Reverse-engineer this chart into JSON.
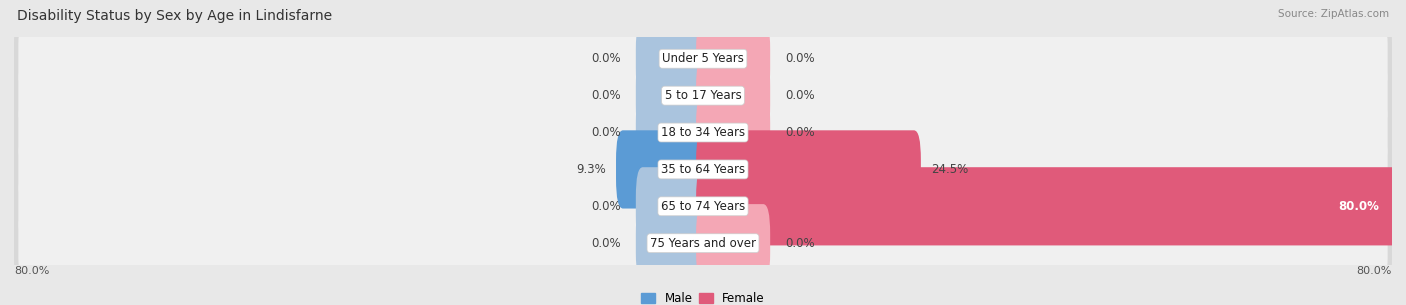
{
  "title": "Disability Status by Sex by Age in Lindisfarne",
  "source": "Source: ZipAtlas.com",
  "categories": [
    "Under 5 Years",
    "5 to 17 Years",
    "18 to 34 Years",
    "35 to 64 Years",
    "65 to 74 Years",
    "75 Years and over"
  ],
  "male_values": [
    0.0,
    0.0,
    0.0,
    9.3,
    0.0,
    0.0
  ],
  "female_values": [
    0.0,
    0.0,
    0.0,
    24.5,
    80.0,
    0.0
  ],
  "male_color_light": "#aac4de",
  "male_color_dark": "#5b9bd5",
  "female_color_light": "#f4a7b5",
  "female_color_dark": "#e05a7a",
  "xlim_left": -80,
  "xlim_right": 80,
  "bar_height": 0.52,
  "stub_size": 7.0,
  "row_outer_color": "#d8d8d8",
  "row_inner_color": "#f0f0f0",
  "bg_color": "#e8e8e8",
  "title_fontsize": 10,
  "label_fontsize": 8.5,
  "tick_fontsize": 8,
  "legend_fontsize": 8.5,
  "axis_label_left": "80.0%",
  "axis_label_right": "80.0%"
}
